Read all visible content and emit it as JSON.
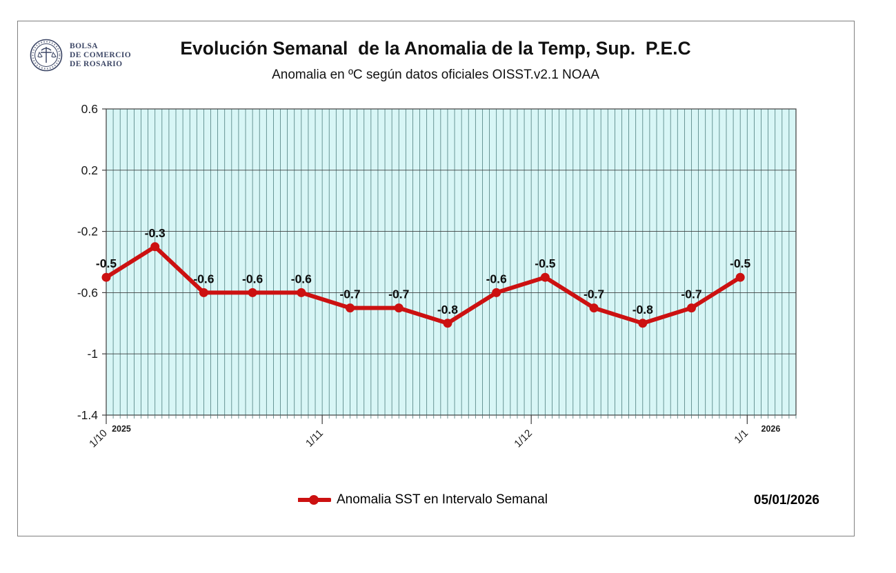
{
  "logo": {
    "org_lines": [
      "BOLSA",
      "DE COMERCIO",
      "DE ROSARIO"
    ],
    "color": "#3d4766"
  },
  "header": {
    "title": "Evolución Semanal  de la Anomalia de la Temp, Sup.  P.E.C",
    "subtitle": "Anomalia en ºC según datos oficiales OISST.v2.1 NOAA"
  },
  "chart_data": {
    "type": "line",
    "title": "Evolución Semanal  de la Anomalia de la Temp, Sup.  P.E.C",
    "subtitle": "Anomalia en ºC según datos oficiales OISST.v2.1 NOAA",
    "interval": "weekly",
    "series": [
      {
        "name": "Anomalia SST en Intervalo Semanal",
        "color": "#cc1111",
        "day_offsets": [
          0,
          7,
          14,
          21,
          28,
          35,
          42,
          49,
          56,
          63,
          70,
          77,
          84,
          91
        ],
        "values": [
          -0.5,
          -0.3,
          -0.6,
          -0.6,
          -0.6,
          -0.7,
          -0.7,
          -0.8,
          -0.6,
          -0.5,
          -0.7,
          -0.8,
          -0.7,
          -0.5
        ],
        "point_labels": [
          "-0.5",
          "-0.3",
          "-0.6",
          "-0.6",
          "-0.6",
          "-0.7",
          "-0.7",
          "-0.8",
          "-0.6",
          "-0.5",
          "-0.7",
          "-0.8",
          "-0.7",
          "-0.5"
        ]
      }
    ],
    "x_axis": {
      "total_days": 99,
      "minor_grid_interval_days": 1,
      "tick_labels": [
        {
          "label": "1/10",
          "day": 0
        },
        {
          "label": "1/11",
          "day": 31
        },
        {
          "label": "1/12",
          "day": 61
        },
        {
          "label": "1/1",
          "day": 92
        }
      ],
      "year_labels": [
        {
          "label": "2025",
          "day": 0.8
        },
        {
          "label": "2026",
          "day": 94
        }
      ]
    },
    "y_axis": {
      "min": -1.4,
      "max": 0.6,
      "ticks": [
        {
          "label": "0.6",
          "value": 0.6
        },
        {
          "label": "0.2",
          "value": 0.2
        },
        {
          "label": "-0.2",
          "value": -0.2
        },
        {
          "label": "-0.6",
          "value": -0.6
        },
        {
          "label": "-1",
          "value": -1.0
        },
        {
          "label": "-1.4",
          "value": -1.4
        }
      ]
    },
    "colors": {
      "plot_bg": "#d8f6f6",
      "grid_vertical": "#4d7d7d",
      "grid_horizontal": "#3c3c3c",
      "plot_border": "#3c3c3c",
      "axis_text": "#1a1a1a",
      "data_label": "#0d0d0d"
    },
    "legend_position": "bottom"
  },
  "legend": {
    "label": "Anomalia SST en Intervalo Semanal",
    "marker_color": "#cc1111"
  },
  "footer": {
    "date": "05/01/2026"
  }
}
